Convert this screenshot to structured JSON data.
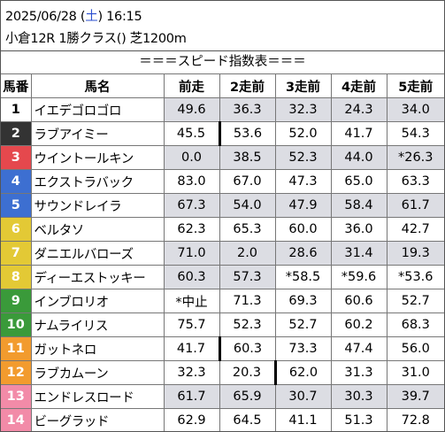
{
  "header": {
    "date_time_prefix": "2025/06/28 (",
    "day_of_week": "土",
    "date_time_suffix": ") 16:15",
    "race_line": "小倉12R 1勝クラス() 芝1200m",
    "table_title": "＝＝＝スピード指数表＝＝＝"
  },
  "columns": [
    "馬番",
    "馬名",
    "前走",
    "2走前",
    "3走前",
    "4走前",
    "5走前"
  ],
  "colors": {
    "gate_1": "#ffffff",
    "gate_2": "#333333",
    "gate_3": "#e5484d",
    "gate_4": "#3d6fd1",
    "gate_5": "#e3c935",
    "gate_6": "#3a9a3a",
    "gate_7": "#f29b2e",
    "gate_8": "#f28ba8",
    "highlight_bg": "#dcdde3"
  },
  "rows": [
    {
      "num": "1",
      "name": "イエデゴロゴロ",
      "vals": [
        "49.6",
        "36.3",
        "32.3",
        "24.3",
        "34.0"
      ],
      "num_bg": "#ffffff",
      "num_fg": "#000000",
      "hl": [
        true,
        true,
        true,
        true,
        true
      ],
      "thick": -1
    },
    {
      "num": "2",
      "name": "ラブアイミー",
      "vals": [
        "45.5",
        "53.6",
        "52.0",
        "41.7",
        "54.3"
      ],
      "num_bg": "#333333",
      "num_fg": "#ffffff",
      "hl": [
        false,
        false,
        false,
        false,
        false
      ],
      "thick": 0
    },
    {
      "num": "3",
      "name": "ウイントールキン",
      "vals": [
        "0.0",
        "38.5",
        "52.3",
        "44.0",
        "*26.3"
      ],
      "num_bg": "#e5484d",
      "num_fg": "#ffffff",
      "hl": [
        true,
        true,
        true,
        true,
        true
      ],
      "thick": -1
    },
    {
      "num": "4",
      "name": "エクストラバック",
      "vals": [
        "83.0",
        "67.0",
        "47.3",
        "65.0",
        "63.3"
      ],
      "num_bg": "#3d6fd1",
      "num_fg": "#ffffff",
      "hl": [
        false,
        false,
        false,
        false,
        false
      ],
      "thick": -1
    },
    {
      "num": "5",
      "name": "サウンドレイラ",
      "vals": [
        "67.3",
        "54.0",
        "47.9",
        "58.4",
        "61.7"
      ],
      "num_bg": "#3d6fd1",
      "num_fg": "#ffffff",
      "hl": [
        true,
        true,
        true,
        true,
        true
      ],
      "thick": -1
    },
    {
      "num": "6",
      "name": "ベルタソ",
      "vals": [
        "62.3",
        "65.3",
        "60.0",
        "36.0",
        "42.7"
      ],
      "num_bg": "#e3c935",
      "num_fg": "#ffffff",
      "hl": [
        false,
        false,
        false,
        false,
        false
      ],
      "thick": -1
    },
    {
      "num": "7",
      "name": "ダニエルバローズ",
      "vals": [
        "71.0",
        "2.0",
        "28.6",
        "31.4",
        "19.3"
      ],
      "num_bg": "#e3c935",
      "num_fg": "#ffffff",
      "hl": [
        true,
        true,
        true,
        true,
        true
      ],
      "thick": -1
    },
    {
      "num": "8",
      "name": "ディーエストッキー",
      "vals": [
        "60.3",
        "57.3",
        "*58.5",
        "*59.6",
        "*53.6"
      ],
      "num_bg": "#e3c935",
      "num_fg": "#ffffff",
      "hl": [
        true,
        true,
        false,
        false,
        false
      ],
      "thick": -1
    },
    {
      "num": "9",
      "name": "インブロリオ",
      "vals": [
        "*中止",
        "71.3",
        "69.3",
        "60.6",
        "52.7"
      ],
      "num_bg": "#3a9a3a",
      "num_fg": "#ffffff",
      "hl": [
        false,
        false,
        false,
        false,
        false
      ],
      "thick": -1
    },
    {
      "num": "10",
      "name": "ナムライリス",
      "vals": [
        "75.7",
        "52.3",
        "52.7",
        "60.2",
        "68.3"
      ],
      "num_bg": "#3a9a3a",
      "num_fg": "#ffffff",
      "hl": [
        false,
        false,
        false,
        false,
        false
      ],
      "thick": -1
    },
    {
      "num": "11",
      "name": "ガットネロ",
      "vals": [
        "41.7",
        "60.3",
        "73.3",
        "47.4",
        "56.0"
      ],
      "num_bg": "#f29b2e",
      "num_fg": "#ffffff",
      "hl": [
        false,
        false,
        false,
        false,
        false
      ],
      "thick": 0
    },
    {
      "num": "12",
      "name": "ラブカムーン",
      "vals": [
        "32.3",
        "20.3",
        "62.0",
        "31.3",
        "31.0"
      ],
      "num_bg": "#f29b2e",
      "num_fg": "#ffffff",
      "hl": [
        false,
        false,
        false,
        false,
        false
      ],
      "thick": 1
    },
    {
      "num": "13",
      "name": "エンドレスロード",
      "vals": [
        "61.7",
        "65.9",
        "30.7",
        "30.3",
        "39.7"
      ],
      "num_bg": "#f28ba8",
      "num_fg": "#ffffff",
      "hl": [
        true,
        true,
        true,
        true,
        true
      ],
      "thick": -1
    },
    {
      "num": "14",
      "name": "ビーグラッド",
      "vals": [
        "62.9",
        "64.5",
        "41.1",
        "51.3",
        "72.8"
      ],
      "num_bg": "#f28ba8",
      "num_fg": "#ffffff",
      "hl": [
        false,
        false,
        false,
        false,
        false
      ],
      "thick": -1
    }
  ]
}
